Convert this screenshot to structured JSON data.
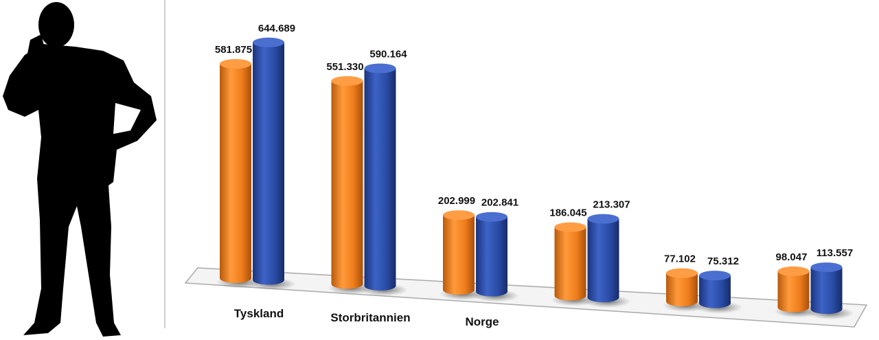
{
  "chart_data": {
    "type": "bar",
    "style": "3d-cylinder",
    "categories": [
      "Tyskland",
      "Storbritannien",
      "Norge",
      "",
      "",
      ""
    ],
    "series": [
      {
        "color": "#ee7d1c",
        "values": [
          581.875,
          551.33,
          202.999,
          186.045,
          77.102,
          98.047
        ]
      },
      {
        "color": "#2a4ca6",
        "values": [
          644.689,
          590.164,
          202.841,
          213.307,
          75.312,
          113.557
        ]
      }
    ],
    "value_labels": [
      [
        "581.875",
        "551.330",
        "202.999",
        "186.045",
        "77.102",
        "98.047"
      ],
      [
        "644.689",
        "590.164",
        "202.841",
        "213.307",
        "75.312",
        "113.557"
      ]
    ],
    "title": "",
    "xlabel": "",
    "ylabel": "",
    "ylim": [
      0,
      700
    ],
    "grid": false,
    "legend": "none"
  },
  "decoration": {
    "figure": "silhouette-man-on-phone"
  }
}
